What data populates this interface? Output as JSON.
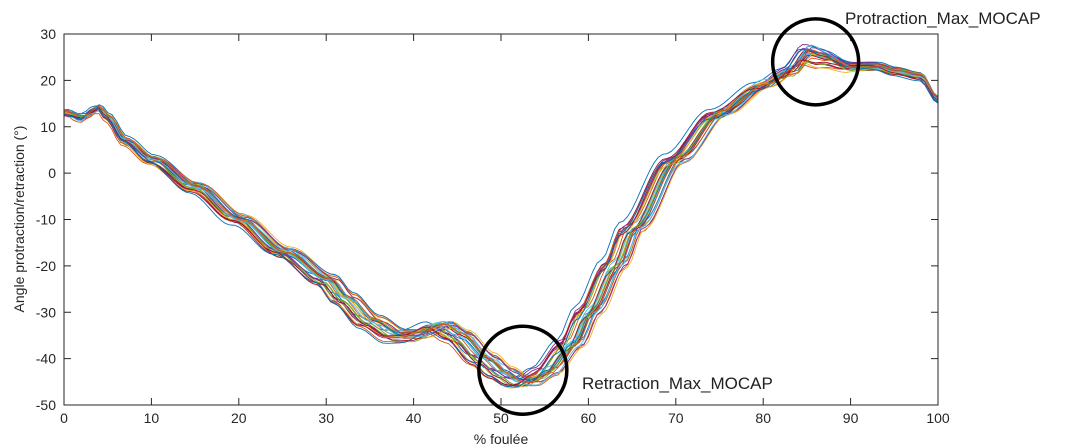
{
  "chart_data": {
    "type": "line",
    "title": "",
    "xlabel": "% foulée",
    "ylabel": "Angle protraction/retraction (°)",
    "xlim": [
      0,
      100
    ],
    "ylim": [
      -50,
      30
    ],
    "xticks": [
      0,
      10,
      20,
      30,
      40,
      50,
      60,
      70,
      80,
      90,
      100
    ],
    "yticks": [
      -50,
      -40,
      -30,
      -20,
      -10,
      0,
      10,
      20,
      30
    ],
    "grid": false,
    "legend": "none",
    "mean_curve": {
      "x": [
        0,
        2,
        4,
        5,
        7,
        10,
        15,
        20,
        25,
        30,
        32,
        35,
        38,
        40,
        43,
        45,
        48,
        50,
        52,
        53,
        55,
        58,
        60,
        63,
        65,
        70,
        75,
        80,
        83,
        85,
        87,
        90,
        93,
        95,
        98,
        100
      ],
      "y": [
        13,
        12,
        14,
        12,
        7,
        3,
        -3,
        -10,
        -17,
        -23,
        -27,
        -32,
        -35,
        -35,
        -33,
        -35,
        -40,
        -43,
        -45,
        -45,
        -43,
        -37,
        -30,
        -20,
        -12,
        3,
        13,
        19,
        22,
        26,
        25,
        23,
        23,
        22,
        21,
        16
      ]
    },
    "series_count": 30,
    "series_colors": [
      "#0072bd",
      "#d95319",
      "#edb120",
      "#7e2f8e",
      "#77ac30",
      "#4dbeee",
      "#a2142f"
    ],
    "annotations": [
      {
        "text": "Protraction_Max_MOCAP",
        "x": 86,
        "y": 24
      },
      {
        "text": "Retraction_Max_MOCAP",
        "x": 52.5,
        "y": -42.5
      }
    ]
  }
}
